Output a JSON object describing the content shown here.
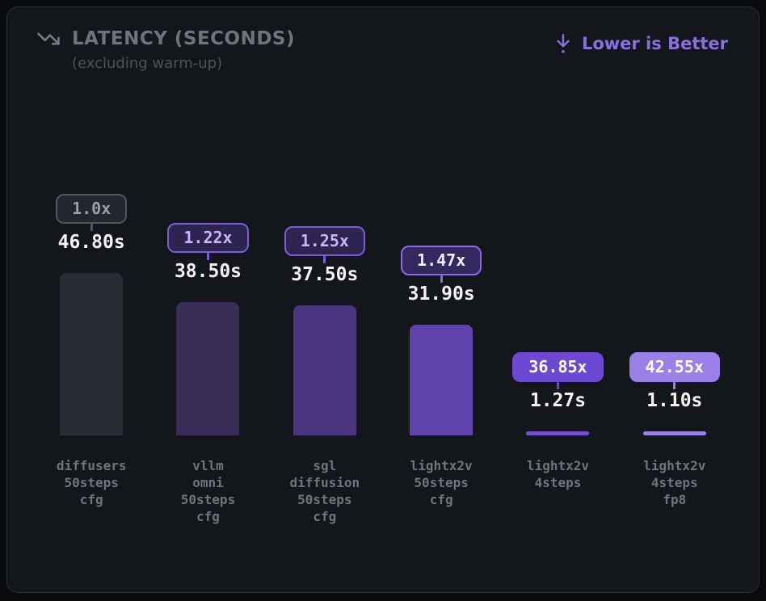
{
  "header": {
    "title": "LATENCY (SECONDS)",
    "subtitle": "(excluding warm-up)",
    "note": "Lower is Better"
  },
  "colors": {
    "page_background": "#0a0b0d",
    "card_background": "#13161a",
    "card_border": "#2a2e35",
    "accent_purple": "#8b6fe2",
    "title_gray": "#6e747c",
    "value_white": "#f4f5f6",
    "label_gray": "#6f757e"
  },
  "chart_data": {
    "type": "bar",
    "title": "LATENCY (SECONDS)",
    "subtitle": "(excluding warm-up)",
    "annotation": "Lower is Better",
    "unit": "seconds",
    "ylim": [
      0,
      46.8
    ],
    "grid": false,
    "legend": "none",
    "categories": [
      "diffusers 50steps cfg",
      "vllm omni 50steps cfg",
      "sgl diffusion 50steps cfg",
      "lightx2v 50steps cfg",
      "lightx2v 4steps",
      "lightx2v 4steps fp8"
    ],
    "values": [
      46.8,
      38.5,
      37.5,
      31.9,
      1.27,
      1.1
    ],
    "speedups": [
      1.0,
      1.22,
      1.25,
      1.47,
      36.85,
      42.55
    ],
    "bars": [
      {
        "label_lines": [
          "diffusers",
          "50steps",
          "cfg"
        ],
        "latency_s": 46.8,
        "latency_label": "46.80s",
        "speedup_label": "1.0x",
        "bar_color": "#282c33",
        "badge_bg": "#23262c",
        "badge_border": "#51565e",
        "badge_text": "#9aa0a8",
        "stem_color": "#51565e"
      },
      {
        "label_lines": [
          "vllm",
          "omni",
          "50steps",
          "cfg"
        ],
        "latency_s": 38.5,
        "latency_label": "38.50s",
        "speedup_label": "1.22x",
        "bar_color": "#3a2d58",
        "badge_bg": "#2e2450",
        "badge_border": "#7e5dd8",
        "badge_text": "#c9b4f7",
        "stem_color": "#7e5dd8"
      },
      {
        "label_lines": [
          "sgl",
          "diffusion",
          "50steps",
          "cfg"
        ],
        "latency_s": 37.5,
        "latency_label": "37.50s",
        "speedup_label": "1.25x",
        "bar_color": "#4b357e",
        "badge_bg": "#2e2450",
        "badge_border": "#7e5dd8",
        "badge_text": "#c9b4f7",
        "stem_color": "#7e5dd8"
      },
      {
        "label_lines": [
          "lightx2v",
          "50steps",
          "cfg"
        ],
        "latency_s": 31.9,
        "latency_label": "31.90s",
        "speedup_label": "1.47x",
        "bar_color": "#5f42ac",
        "badge_bg": "#332860",
        "badge_border": "#8a68e8",
        "badge_text": "#f4f0fd",
        "stem_color": "#8a68e8"
      },
      {
        "label_lines": [
          "lightx2v",
          "4steps"
        ],
        "latency_s": 1.27,
        "latency_label": "1.27s",
        "speedup_label": "36.85x",
        "bar_color": "#7351cc",
        "badge_bg": "#6d49d3",
        "badge_border": "#6d49d3",
        "badge_text": "#ffffff",
        "stem_color": "#6d49d3"
      },
      {
        "label_lines": [
          "lightx2v",
          "4steps",
          "fp8"
        ],
        "latency_s": 1.1,
        "latency_label": "1.10s",
        "speedup_label": "42.55x",
        "bar_color": "#9b80e8",
        "badge_bg": "#9b80e8",
        "badge_border": "#9b80e8",
        "badge_text": "#ffffff",
        "stem_color": "#9b80e8"
      }
    ]
  }
}
